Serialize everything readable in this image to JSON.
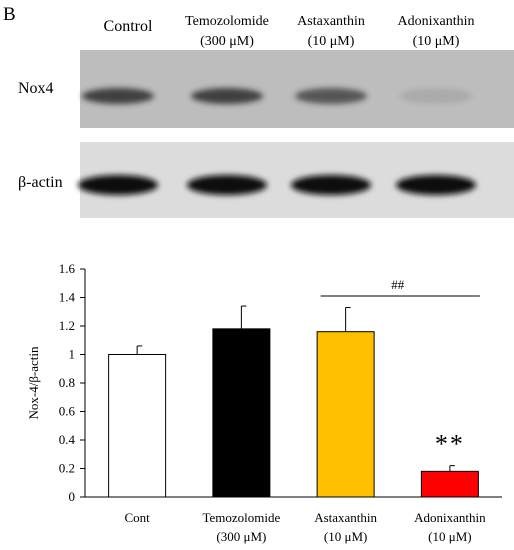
{
  "panel_label": "B",
  "blot": {
    "lanes": [
      {
        "line1": "Control",
        "line2": ""
      },
      {
        "line1": "Temozolomide",
        "line2": "(300 μM)"
      },
      {
        "line1": "Astaxanthin",
        "line2": "(10 μM)"
      },
      {
        "line1": "Adonixanthin",
        "line2": "(10 μM)"
      }
    ],
    "rows": [
      {
        "label": "Nox4",
        "band_intensity": [
          0.85,
          0.85,
          0.7,
          0.12
        ],
        "background": "#bdbdbd"
      },
      {
        "label": "β-actin",
        "band_intensity": [
          1.0,
          1.0,
          1.0,
          1.0
        ],
        "background": "#dcdcdc"
      }
    ]
  },
  "chart_data": {
    "type": "bar",
    "categories": [
      "Cont",
      "Temozolomide",
      "Astaxanthin",
      "Adonixanthin"
    ],
    "category_sublabels": [
      "",
      "(300 μM)",
      "(10 μM)",
      "(10 μM)"
    ],
    "values": [
      1.0,
      1.18,
      1.16,
      0.18
    ],
    "errors": [
      0.06,
      0.16,
      0.17,
      0.04
    ],
    "colors": [
      "#ffffff",
      "#000000",
      "#ffc000",
      "#ff0000"
    ],
    "ylabel": "Nox-4/β-actin",
    "ylim": [
      0,
      1.6
    ],
    "yticks": [
      "0",
      "0.2",
      "0.4",
      "0.6",
      "0.8",
      "1",
      "1.2",
      "1.4",
      "1.6"
    ],
    "annotations": {
      "bracket_label": "##",
      "bracket_from": "Astaxanthin",
      "bracket_to": "Adonixanthin",
      "star_label": "**",
      "star_on": "Adonixanthin"
    }
  }
}
